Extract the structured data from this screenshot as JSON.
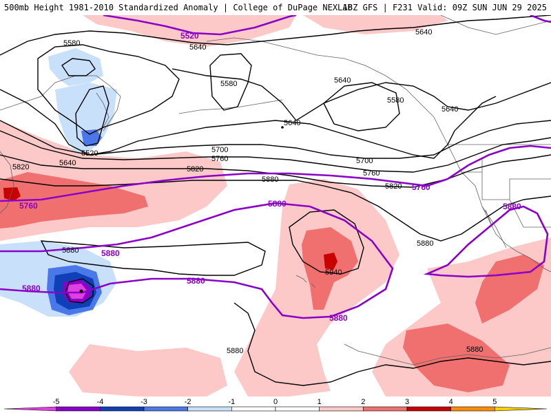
{
  "header": {
    "title": "500mb Height 1981-2010 Standardized Anomaly | College of DuPage NEXLAB",
    "run_info": "18Z GFS | F231 Valid: 09Z SUN JUN 29 2025"
  },
  "contour_labels": {
    "black": [
      "5580",
      "5640",
      "5640",
      "5580",
      "5640",
      "5580",
      "5640",
      "5640",
      "5520",
      "5640",
      "5700",
      "5760",
      "5820",
      "5700",
      "5760",
      "5820",
      "5820",
      "5880",
      "5880",
      "5880",
      "5940",
      "5880",
      "5880"
    ],
    "purple": [
      "5520",
      "5760",
      "5760",
      "5880",
      "5880",
      "5880",
      "5880",
      "5880",
      "5880"
    ]
  },
  "legend": {
    "ticks": [
      "-5",
      "-4",
      "-3",
      "-2",
      "-1",
      "0",
      "1",
      "2",
      "3",
      "4",
      "5"
    ],
    "colors": [
      "#e040e0",
      "#8a00c8",
      "#1040b8",
      "#4a78e8",
      "#c8e0fa",
      "#ffffff",
      "#ffffff",
      "#fcc8c8",
      "#f07070",
      "#c80000",
      "#ff8c00",
      "#ffd000"
    ]
  },
  "colors": {
    "height_contour": "#000000",
    "climatology_contour": "#8a00c8",
    "coastline": "#606060"
  }
}
